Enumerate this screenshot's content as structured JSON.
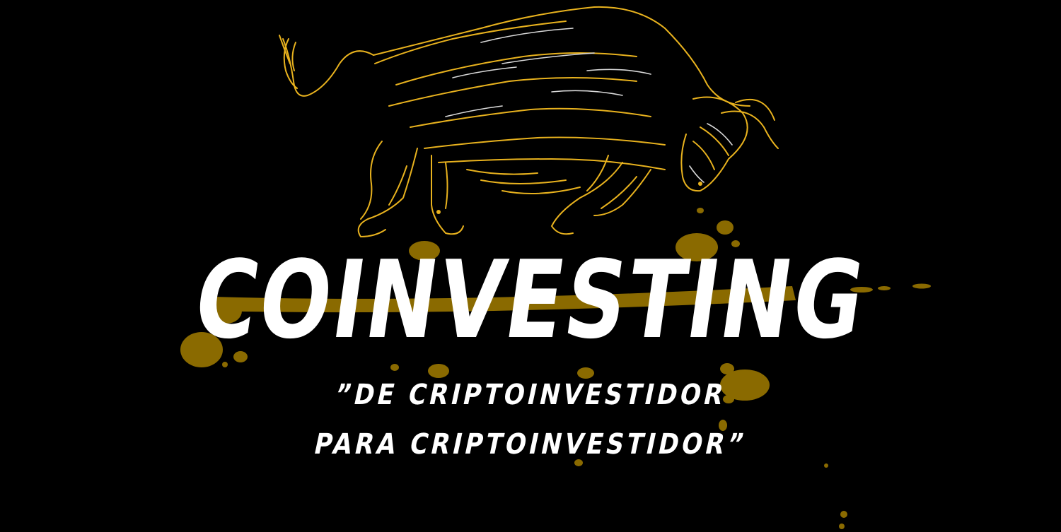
{
  "brand": {
    "name": "COINVESTING",
    "tagline_line1": "”DE CRIPTOINVESTIDOR",
    "tagline_line2": "PARA CRIPTOINVESTIDOR”"
  },
  "artwork": {
    "illustration": "charging-bull-icon",
    "splatter": "ink-splatter"
  },
  "colors": {
    "background": "#000000",
    "bull_lines": "#e8b21e",
    "bull_highlight": "#d9d9d9",
    "splatter": "#8a6a00",
    "text": "#ffffff"
  }
}
